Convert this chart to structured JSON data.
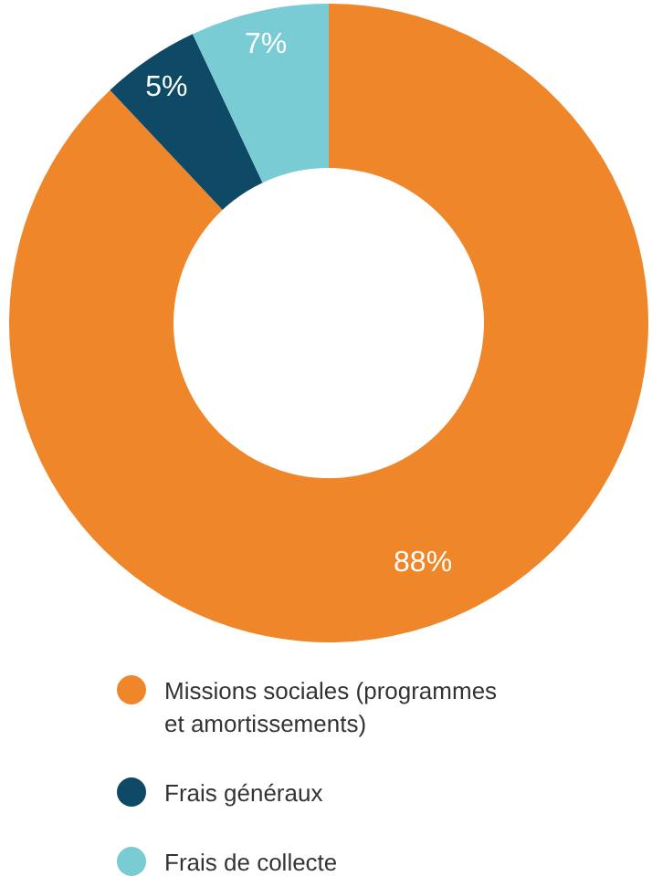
{
  "chart_data": {
    "type": "donut",
    "categories": [
      "Missions sociales (programmes et amortissements)",
      "Frais généraux",
      "Frais de collecte"
    ],
    "values": [
      88,
      5,
      7
    ],
    "colors": [
      "#f0862a",
      "#0e4a65",
      "#79ccd3"
    ],
    "value_labels": [
      "88%",
      "5%",
      "7%"
    ],
    "legend": "bottom"
  }
}
